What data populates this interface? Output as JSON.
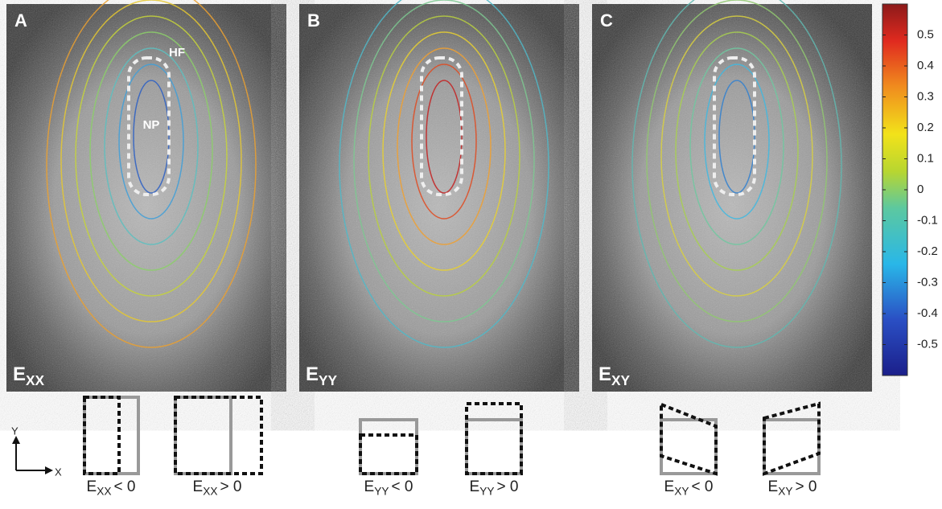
{
  "panels": [
    {
      "label": "A",
      "strain": {
        "base": "E",
        "sub": "XX"
      },
      "annotations": [
        "HF",
        "NP"
      ]
    },
    {
      "label": "B",
      "strain": {
        "base": "E",
        "sub": "YY"
      }
    },
    {
      "label": "C",
      "strain": {
        "base": "E",
        "sub": "XY"
      }
    }
  ],
  "colorbar": {
    "lim": [
      -0.6,
      0.6
    ],
    "ticks": [
      0.5,
      0.4,
      0.3,
      0.2,
      0.1,
      0,
      -0.1,
      -0.2,
      -0.3,
      -0.4,
      -0.5
    ]
  },
  "axes_icon": {
    "y": "Y",
    "x": "X"
  },
  "diagram_captions": [
    {
      "base": "E",
      "sub": "XX",
      "rest": "< 0"
    },
    {
      "base": "E",
      "sub": "XX",
      "rest": "> 0"
    },
    {
      "base": "E",
      "sub": "YY",
      "rest": "< 0"
    },
    {
      "base": "E",
      "sub": "YY",
      "rest": "> 0"
    },
    {
      "base": "E",
      "sub": "XY",
      "rest": "< 0"
    },
    {
      "base": "E",
      "sub": "XY",
      "rest": "> 0"
    }
  ]
}
